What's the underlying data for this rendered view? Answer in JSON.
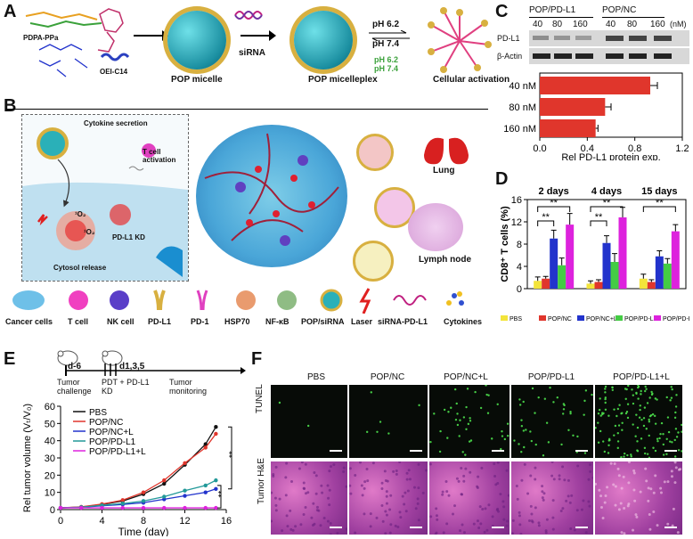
{
  "panels": {
    "A": "A",
    "B": "B",
    "C": "C",
    "D": "D",
    "E": "E",
    "F": "F"
  },
  "panelA": {
    "chem1": "PDPA-PPa",
    "chem2": "OEI-C14",
    "micelle": "POP micelle",
    "sirna": "siRNA",
    "micelleplex": "POP micelleplex",
    "ph_top": "pH 6.2",
    "ph_bot": "pH 7.4",
    "ph_top2": "pH 6.2",
    "ph_bot2": "pH 7.4",
    "activation": "Cellular activation"
  },
  "panelB": {
    "cytokine": "Cytokine secretion",
    "tcell_act": "T cell activation",
    "o2a": "¹O₂",
    "o2b": "¹O₂",
    "kd": "PD-L1 KD",
    "release": "Cytosol release",
    "lung": "Lung",
    "lymph": "Lymph node",
    "legend": [
      "Cancer cells",
      "T cell",
      "NK cell",
      "PD-L1",
      "PD-1",
      "HSP70",
      "NF-κB",
      "POP/siRNA",
      "Laser",
      "siRNA-PD-L1",
      "Cytokines"
    ]
  },
  "panelC": {
    "groups": [
      "POP/PD-L1",
      "POP/NC"
    ],
    "lanes": [
      "40",
      "80",
      "160",
      "40",
      "80",
      "160"
    ],
    "unit": "(nM)",
    "bands": [
      "PD-L1",
      "β-Actin"
    ],
    "chart_data": {
      "type": "bar",
      "orientation": "horizontal",
      "categories": [
        "40 nM",
        "80 nM",
        "160 nM"
      ],
      "values": [
        0.93,
        0.55,
        0.47
      ],
      "errors": [
        0.06,
        0.05,
        0.02
      ],
      "xlim": [
        0,
        1.2
      ],
      "xticks": [
        "0.0",
        "0.4",
        "0.8",
        "1.2"
      ],
      "xlabel": "Rel PD-L1 protein exp.",
      "color": "#e0362c"
    }
  },
  "panelD": {
    "chart_data": {
      "type": "bar",
      "categories": [
        "2 days",
        "4 days",
        "15 days"
      ],
      "ylim": [
        0,
        16
      ],
      "yticks": [
        "0",
        "4",
        "8",
        "12",
        "16"
      ],
      "ylabel": "CD8⁺ T cells (%)",
      "series": [
        {
          "name": "PBS",
          "color": "#f3e43a",
          "values": [
            1.4,
            0.9,
            1.8
          ],
          "errors": [
            0.7,
            0.5,
            0.8
          ]
        },
        {
          "name": "POP/NC",
          "color": "#e0362c",
          "values": [
            1.8,
            1.2,
            1.2
          ],
          "errors": [
            0.4,
            0.4,
            0.4
          ]
        },
        {
          "name": "POP/NC+L",
          "color": "#2233cc",
          "values": [
            9.0,
            8.2,
            5.8
          ],
          "errors": [
            1.5,
            1.3,
            1.0
          ]
        },
        {
          "name": "POP/PD-L1",
          "color": "#44cc44",
          "values": [
            4.2,
            4.8,
            4.5
          ],
          "errors": [
            1.3,
            1.5,
            0.9
          ]
        },
        {
          "name": "POP/PD-L1+L",
          "color": "#dd22dd",
          "values": [
            11.5,
            12.8,
            10.3
          ],
          "errors": [
            2.0,
            1.8,
            1.2
          ]
        }
      ],
      "sig": "**"
    }
  },
  "panelE": {
    "timeline": [
      "d-6",
      "d1,3,5"
    ],
    "steps": [
      "Tumor challenge",
      "PDT + PD-L1 KD",
      "Tumor monitoring"
    ],
    "chart_data": {
      "type": "line",
      "x": [
        0,
        2,
        4,
        6,
        8,
        10,
        12,
        14,
        15
      ],
      "xlim": [
        0,
        16
      ],
      "xticks": [
        "0",
        "4",
        "8",
        "12",
        "16"
      ],
      "ylim": [
        0,
        60
      ],
      "yticks": [
        "0",
        "10",
        "20",
        "30",
        "40",
        "50",
        "60"
      ],
      "xlabel": "Time (day)",
      "ylabel": "Rel tumor volume (Vₜ/V₀)",
      "series": [
        {
          "name": "PBS",
          "color": "#111111",
          "marker": "square",
          "values": [
            1,
            1.5,
            3,
            5,
            9,
            15,
            26,
            38,
            48
          ]
        },
        {
          "name": "POP/NC",
          "color": "#e0362c",
          "marker": "circle",
          "values": [
            1,
            1.6,
            3.2,
            5.5,
            10,
            17,
            27,
            36,
            44
          ]
        },
        {
          "name": "POP/NC+L",
          "color": "#2233cc",
          "marker": "triangle",
          "values": [
            1,
            1.3,
            2.2,
            3,
            4,
            6,
            8,
            10,
            12
          ]
        },
        {
          "name": "POP/PD-L1",
          "color": "#229999",
          "marker": "triangle-down",
          "values": [
            1,
            1.4,
            2.5,
            3.5,
            5,
            7.5,
            11,
            14,
            17
          ]
        },
        {
          "name": "POP/PD-L1+L",
          "color": "#dd22dd",
          "marker": "diamond",
          "values": [
            1,
            1,
            1,
            1,
            1,
            1,
            1,
            1,
            1
          ]
        }
      ],
      "sig": [
        "**",
        "**"
      ]
    }
  },
  "panelF": {
    "cols": [
      "PBS",
      "POP/NC",
      "POP/NC+L",
      "POP/PD-L1",
      "POP/PD-L1+L"
    ],
    "rows": [
      "TUNEL",
      "Tumor H&E"
    ]
  },
  "colors": {
    "red": "#e0362c",
    "teal": "#2ab0b8",
    "dark": "#111111",
    "tissue": "#c84fa8"
  }
}
